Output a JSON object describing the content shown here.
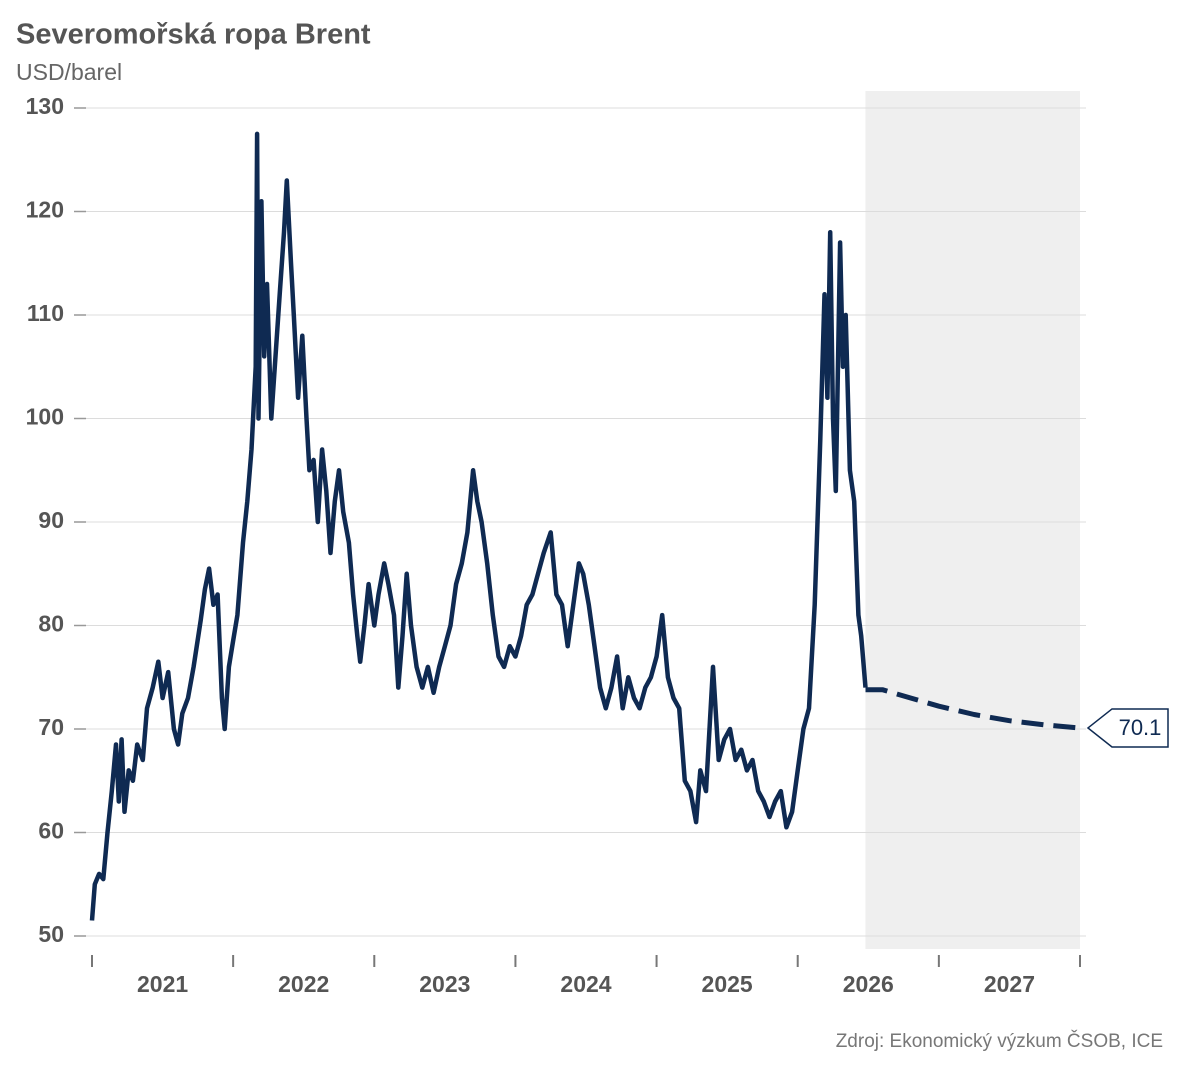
{
  "chart_data": {
    "type": "line",
    "title": "Severomořská ropa Brent",
    "subtitle": "USD/barel",
    "source": "Zdroj: Ekonomický výzkum ČSOB, ICE",
    "xlim": [
      2021,
      2028
    ],
    "xticks": [
      2021,
      2022,
      2023,
      2024,
      2025,
      2026,
      2027,
      2028
    ],
    "xtick_labels": [
      2021,
      2022,
      2023,
      2024,
      2025,
      2026,
      2027
    ],
    "ylim": [
      50,
      130
    ],
    "yticks": [
      50,
      60,
      70,
      80,
      90,
      100,
      110,
      120,
      130
    ],
    "grid": true,
    "forecast_region": [
      2026.48,
      2028
    ],
    "forecast_color": "#efefef",
    "series": [
      {
        "color": "#0f2a52",
        "line_style": "solid",
        "x": [
          2021.0,
          2021.02,
          2021.05,
          2021.08,
          2021.11,
          2021.14,
          2021.17,
          2021.19,
          2021.21,
          2021.23,
          2021.26,
          2021.29,
          2021.32,
          2021.36,
          2021.39,
          2021.43,
          2021.47,
          2021.5,
          2021.54,
          2021.58,
          2021.61,
          2021.64,
          2021.68,
          2021.72,
          2021.77,
          2021.8,
          2021.83,
          2021.86,
          2021.89,
          2021.92,
          2021.94,
          2021.97,
          2022.0,
          2022.03,
          2022.07,
          2022.1,
          2022.13,
          2022.16,
          2022.17,
          2022.18,
          2022.2,
          2022.22,
          2022.24,
          2022.27,
          2022.3,
          2022.33,
          2022.36,
          2022.38,
          2022.41,
          2022.43,
          2022.46,
          2022.49,
          2022.52,
          2022.54,
          2022.57,
          2022.6,
          2022.63,
          2022.66,
          2022.69,
          2022.72,
          2022.75,
          2022.78,
          2022.82,
          2022.85,
          2022.88,
          2022.9,
          2022.93,
          2022.96,
          2023.0,
          2023.03,
          2023.07,
          2023.1,
          2023.14,
          2023.17,
          2023.2,
          2023.23,
          2023.26,
          2023.3,
          2023.34,
          2023.38,
          2023.42,
          2023.46,
          2023.5,
          2023.54,
          2023.58,
          2023.62,
          2023.66,
          2023.7,
          2023.73,
          2023.76,
          2023.8,
          2023.84,
          2023.88,
          2023.92,
          2023.96,
          2024.0,
          2024.04,
          2024.08,
          2024.12,
          2024.16,
          2024.2,
          2024.25,
          2024.29,
          2024.33,
          2024.37,
          2024.41,
          2024.45,
          2024.48,
          2024.52,
          2024.56,
          2024.6,
          2024.64,
          2024.68,
          2024.72,
          2024.76,
          2024.8,
          2024.84,
          2024.88,
          2024.92,
          2024.96,
          2025.0,
          2025.04,
          2025.08,
          2025.12,
          2025.16,
          2025.2,
          2025.24,
          2025.28,
          2025.31,
          2025.35,
          2025.4,
          2025.44,
          2025.48,
          2025.52,
          2025.56,
          2025.6,
          2025.64,
          2025.68,
          2025.72,
          2025.76,
          2025.8,
          2025.84,
          2025.88,
          2025.92,
          2025.96,
          2026.0,
          2026.04,
          2026.08,
          2026.12,
          2026.16,
          2026.19,
          2026.21,
          2026.23,
          2026.25,
          2026.27,
          2026.3,
          2026.32,
          2026.34,
          2026.37,
          2026.4,
          2026.43,
          2026.45,
          2026.48
        ],
        "values": [
          51.5,
          55,
          56,
          55.5,
          60,
          64,
          68.5,
          63,
          69,
          62,
          66,
          65,
          68.5,
          67,
          72,
          74,
          76.5,
          73,
          75.5,
          70,
          68.5,
          71.5,
          73,
          76,
          80.5,
          83.5,
          85.5,
          82,
          83,
          73,
          70,
          76,
          78.5,
          81,
          88,
          92,
          97,
          105,
          127.5,
          100,
          121,
          106,
          113,
          100,
          106,
          112,
          118,
          123,
          115,
          110,
          102,
          108,
          100,
          95,
          96,
          90,
          97,
          93,
          87,
          92,
          95,
          91,
          88,
          83,
          79,
          76.5,
          80,
          84,
          80,
          83,
          86,
          84,
          81,
          74,
          79,
          85,
          80,
          76,
          74,
          76,
          73.5,
          76,
          78,
          80,
          84,
          86,
          89,
          95,
          92,
          90,
          86,
          81,
          77,
          76,
          78,
          77,
          79,
          82,
          83,
          85,
          87,
          89,
          83,
          82,
          78,
          82,
          86,
          85,
          82,
          78,
          74,
          72,
          74,
          77,
          72,
          75,
          73,
          72,
          74,
          75,
          77,
          81,
          75,
          73,
          72,
          65,
          64,
          61,
          66,
          64,
          76,
          67,
          69,
          70,
          67,
          68,
          66,
          67,
          64,
          63,
          61.5,
          63,
          64,
          60.5,
          62,
          66,
          70,
          72,
          82,
          98,
          112,
          102,
          118,
          100,
          93,
          117,
          105,
          110,
          95,
          92,
          81,
          79,
          74
        ]
      },
      {
        "color": "#0f2a52",
        "line_style": "dashed",
        "x": [
          2026.48,
          2026.6,
          2026.8,
          2027.0,
          2027.25,
          2027.5,
          2027.75,
          2028.0
        ],
        "values": [
          73.8,
          73.8,
          73.0,
          72.2,
          71.4,
          70.8,
          70.4,
          70.1
        ],
        "end_label": "70.1"
      }
    ]
  }
}
